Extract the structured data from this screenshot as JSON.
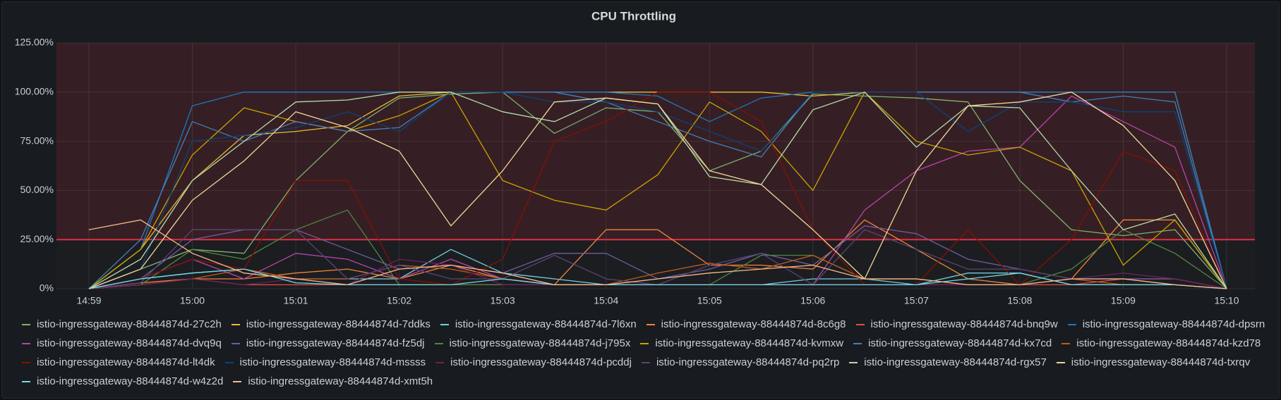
{
  "chart_data": {
    "type": "line",
    "title": "CPU Throttling",
    "categories": [
      "14:59",
      null,
      "15:00",
      null,
      "15:01",
      null,
      "15:02",
      null,
      "15:03",
      null,
      "15:04",
      null,
      "15:05",
      null,
      "15:06",
      null,
      "15:07",
      null,
      "15:08",
      null,
      "15:09",
      null,
      "15:10"
    ],
    "ylim": [
      0,
      125
    ],
    "yticks": [
      {
        "value": 0,
        "label": "0%"
      },
      {
        "value": 25,
        "label": "25.00%"
      },
      {
        "value": 50,
        "label": "50.00%"
      },
      {
        "value": 75,
        "label": "75.00%"
      },
      {
        "value": 100,
        "label": "100.00%"
      },
      {
        "value": 125,
        "label": "125.00%"
      }
    ],
    "grid": true,
    "threshold": 25,
    "threshold_color": "#e02f44",
    "series": [
      {
        "name": "istio-ingressgateway-88444874d-27c2h",
        "color": "#7EB26D",
        "values": [
          0,
          10,
          20,
          18,
          55,
          80,
          97,
          99,
          100,
          79,
          92,
          90,
          60,
          70,
          99,
          98,
          97,
          95,
          55,
          30,
          27,
          30,
          0
        ]
      },
      {
        "name": "istio-ingressgateway-88444874d-7ddks",
        "color": "#EAB839",
        "values": [
          0,
          20,
          55,
          78,
          80,
          83,
          98,
          100,
          100,
          100,
          100,
          100,
          100,
          100,
          98,
          100,
          100,
          100,
          100,
          100,
          100,
          100,
          0
        ]
      },
      {
        "name": "istio-ingressgateway-88444874d-7l6xn",
        "color": "#6ED0E0",
        "values": [
          0,
          5,
          8,
          10,
          5,
          5,
          5,
          20,
          8,
          5,
          2,
          2,
          2,
          2,
          5,
          5,
          2,
          8,
          8,
          2,
          2,
          2,
          0
        ]
      },
      {
        "name": "istio-ingressgateway-88444874d-8c6g8",
        "color": "#EF843C",
        "values": [
          0,
          3,
          5,
          5,
          8,
          10,
          5,
          12,
          5,
          2,
          30,
          30,
          12,
          12,
          10,
          35,
          20,
          5,
          2,
          5,
          35,
          35,
          0
        ]
      },
      {
        "name": "istio-ingressgateway-88444874d-bnq9w",
        "color": "#E24D42",
        "values": [
          0,
          2,
          5,
          2,
          2,
          2,
          2,
          2,
          2,
          2,
          2,
          2,
          2,
          2,
          2,
          2,
          2,
          2,
          2,
          2,
          5,
          5,
          0
        ]
      },
      {
        "name": "istio-ingressgateway-88444874d-dpsrn",
        "color": "#1F78C1",
        "values": [
          0,
          20,
          93,
          100,
          100,
          100,
          100,
          100,
          100,
          100,
          100,
          98,
          85,
          97,
          100,
          100,
          100,
          100,
          100,
          100,
          100,
          100,
          0
        ]
      },
      {
        "name": "istio-ingressgateway-88444874d-dvq9q",
        "color": "#BA43A9",
        "values": [
          0,
          5,
          15,
          5,
          18,
          15,
          5,
          15,
          5,
          2,
          2,
          2,
          2,
          2,
          2,
          40,
          60,
          70,
          72,
          98,
          85,
          72,
          0
        ]
      },
      {
        "name": "istio-ingressgateway-88444874d-fz5dj",
        "color": "#705DA0",
        "values": [
          0,
          5,
          25,
          30,
          30,
          20,
          10,
          12,
          8,
          18,
          18,
          5,
          10,
          18,
          12,
          32,
          28,
          15,
          10,
          5,
          5,
          5,
          0
        ]
      },
      {
        "name": "istio-ingressgateway-88444874d-j795x",
        "color": "#508642",
        "values": [
          0,
          2,
          20,
          15,
          30,
          40,
          2,
          2,
          2,
          2,
          2,
          2,
          2,
          17,
          17,
          5,
          5,
          2,
          2,
          10,
          30,
          18,
          0
        ]
      },
      {
        "name": "istio-ingressgateway-88444874d-kvmxw",
        "color": "#CCA300",
        "values": [
          0,
          20,
          68,
          92,
          85,
          80,
          88,
          100,
          55,
          45,
          40,
          58,
          95,
          80,
          50,
          100,
          75,
          68,
          72,
          60,
          12,
          35,
          0
        ]
      },
      {
        "name": "istio-ingressgateway-88444874d-kx7cd",
        "color": "#447EBC",
        "values": [
          0,
          25,
          85,
          75,
          85,
          80,
          82,
          100,
          100,
          100,
          95,
          85,
          75,
          67,
          100,
          100,
          100,
          100,
          100,
          95,
          98,
          95,
          0
        ]
      },
      {
        "name": "istio-ingressgateway-88444874d-kzd78",
        "color": "#C15C17",
        "values": [
          0,
          2,
          5,
          10,
          5,
          5,
          12,
          10,
          5,
          2,
          2,
          8,
          13,
          10,
          17,
          5,
          5,
          2,
          2,
          5,
          2,
          2,
          0
        ]
      },
      {
        "name": "istio-ingressgateway-88444874d-lt4dk",
        "color": "#890F02",
        "values": [
          0,
          5,
          15,
          10,
          55,
          55,
          5,
          2,
          15,
          75,
          85,
          100,
          100,
          85,
          30,
          2,
          2,
          30,
          2,
          25,
          70,
          60,
          0
        ]
      },
      {
        "name": "istio-ingressgateway-88444874d-mssss",
        "color": "#0A437C",
        "values": [
          0,
          10,
          75,
          78,
          82,
          90,
          80,
          100,
          100,
          95,
          95,
          90,
          80,
          70,
          100,
          100,
          100,
          80,
          95,
          95,
          90,
          90,
          0
        ]
      },
      {
        "name": "istio-ingressgateway-88444874d-pcddj",
        "color": "#6D1F62",
        "values": [
          0,
          2,
          5,
          2,
          5,
          2,
          15,
          12,
          2,
          2,
          2,
          2,
          2,
          2,
          2,
          2,
          2,
          2,
          2,
          5,
          8,
          5,
          0
        ]
      },
      {
        "name": "istio-ingressgateway-88444874d-pq2rp",
        "color": "#584477",
        "values": [
          0,
          3,
          30,
          30,
          30,
          5,
          12,
          5,
          5,
          17,
          5,
          2,
          12,
          18,
          2,
          30,
          20,
          10,
          10,
          5,
          5,
          2,
          0
        ]
      },
      {
        "name": "istio-ingressgateway-88444874d-rgx57",
        "color": "#B7DBAB",
        "values": [
          0,
          15,
          55,
          75,
          95,
          96,
          100,
          100,
          90,
          85,
          97,
          94,
          57,
          53,
          91,
          100,
          72,
          93,
          92,
          60,
          30,
          38,
          0
        ]
      },
      {
        "name": "istio-ingressgateway-88444874d-txrqv",
        "color": "#F4D598",
        "values": [
          0,
          10,
          45,
          65,
          90,
          82,
          70,
          32,
          60,
          95,
          97,
          94,
          60,
          53,
          30,
          5,
          60,
          93,
          95,
          100,
          83,
          55,
          0
        ]
      },
      {
        "name": "istio-ingressgateway-88444874d-w4z2d",
        "color": "#70DBED",
        "values": [
          0,
          5,
          8,
          10,
          3,
          2,
          2,
          2,
          5,
          2,
          2,
          2,
          2,
          2,
          2,
          2,
          2,
          5,
          8,
          2,
          2,
          2,
          0
        ]
      },
      {
        "name": "istio-ingressgateway-88444874d-xmt5h",
        "color": "#F9BA8F",
        "values": [
          30,
          35,
          18,
          8,
          5,
          2,
          10,
          12,
          8,
          2,
          2,
          5,
          8,
          10,
          12,
          5,
          5,
          2,
          2,
          5,
          5,
          2,
          0
        ]
      }
    ]
  }
}
